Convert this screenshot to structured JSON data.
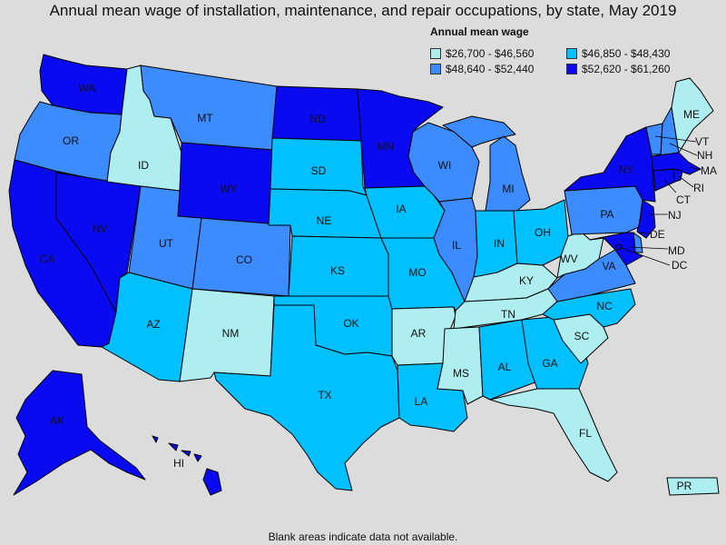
{
  "title": "Annual mean wage of installation, maintenance, and repair occupations, by state, May 2019",
  "legend": {
    "title": "Annual mean wage",
    "items": [
      {
        "label": "$26,700 - $46,560",
        "color": "#aeeef0"
      },
      {
        "label": "$46,850 - $48,430",
        "color": "#00c0ff"
      },
      {
        "label": "$48,640 - $52,440",
        "color": "#3c8cff"
      },
      {
        "label": "$52,620 - $61,260",
        "color": "#0a0af0"
      }
    ]
  },
  "note": "Blank areas indicate data not available.",
  "states": {
    "WA": {
      "label": "WA",
      "bin": 3
    },
    "OR": {
      "label": "OR",
      "bin": 2
    },
    "CA": {
      "label": "CA",
      "bin": 3
    },
    "NV": {
      "label": "NV",
      "bin": 3
    },
    "ID": {
      "label": "ID",
      "bin": 0
    },
    "MT": {
      "label": "MT",
      "bin": 2
    },
    "WY": {
      "label": "WY",
      "bin": 3
    },
    "UT": {
      "label": "UT",
      "bin": 2
    },
    "CO": {
      "label": "CO",
      "bin": 2
    },
    "AZ": {
      "label": "AZ",
      "bin": 1
    },
    "NM": {
      "label": "NM",
      "bin": 0
    },
    "ND": {
      "label": "ND",
      "bin": 3
    },
    "SD": {
      "label": "SD",
      "bin": 1
    },
    "NE": {
      "label": "NE",
      "bin": 1
    },
    "KS": {
      "label": "KS",
      "bin": 1
    },
    "OK": {
      "label": "OK",
      "bin": 1
    },
    "TX": {
      "label": "TX",
      "bin": 1
    },
    "MN": {
      "label": "MN",
      "bin": 3
    },
    "IA": {
      "label": "IA",
      "bin": 1
    },
    "MO": {
      "label": "MO",
      "bin": 1
    },
    "AR": {
      "label": "AR",
      "bin": 0
    },
    "LA": {
      "label": "LA",
      "bin": 1
    },
    "WI": {
      "label": "WI",
      "bin": 2
    },
    "IL": {
      "label": "IL",
      "bin": 2
    },
    "MI": {
      "label": "MI",
      "bin": 2
    },
    "IN": {
      "label": "IN",
      "bin": 1
    },
    "OH": {
      "label": "OH",
      "bin": 1
    },
    "KY": {
      "label": "KY",
      "bin": 0
    },
    "TN": {
      "label": "TN",
      "bin": 0
    },
    "MS": {
      "label": "MS",
      "bin": 0
    },
    "AL": {
      "label": "AL",
      "bin": 1
    },
    "GA": {
      "label": "GA",
      "bin": 1
    },
    "FL": {
      "label": "FL",
      "bin": 0
    },
    "SC": {
      "label": "SC",
      "bin": 0
    },
    "NC": {
      "label": "NC",
      "bin": 1
    },
    "VA": {
      "label": "VA",
      "bin": 2
    },
    "WV": {
      "label": "WV",
      "bin": 0
    },
    "PA": {
      "label": "PA",
      "bin": 2
    },
    "NY": {
      "label": "NY",
      "bin": 3
    },
    "VT": {
      "label": "VT",
      "bin": 2
    },
    "NH": {
      "label": "NH",
      "bin": 2
    },
    "ME": {
      "label": "ME",
      "bin": 0
    },
    "MA": {
      "label": "MA",
      "bin": 3
    },
    "RI": {
      "label": "RI",
      "bin": 3
    },
    "CT": {
      "label": "CT",
      "bin": 3
    },
    "NJ": {
      "label": "NJ",
      "bin": 3
    },
    "DE": {
      "label": "DE",
      "bin": 2
    },
    "MD": {
      "label": "MD",
      "bin": 3
    },
    "DC": {
      "label": "DC",
      "bin": 3
    },
    "AK": {
      "label": "AK",
      "bin": 3
    },
    "HI": {
      "label": "HI",
      "bin": 3
    },
    "PR": {
      "label": "PR",
      "bin": 0
    }
  }
}
